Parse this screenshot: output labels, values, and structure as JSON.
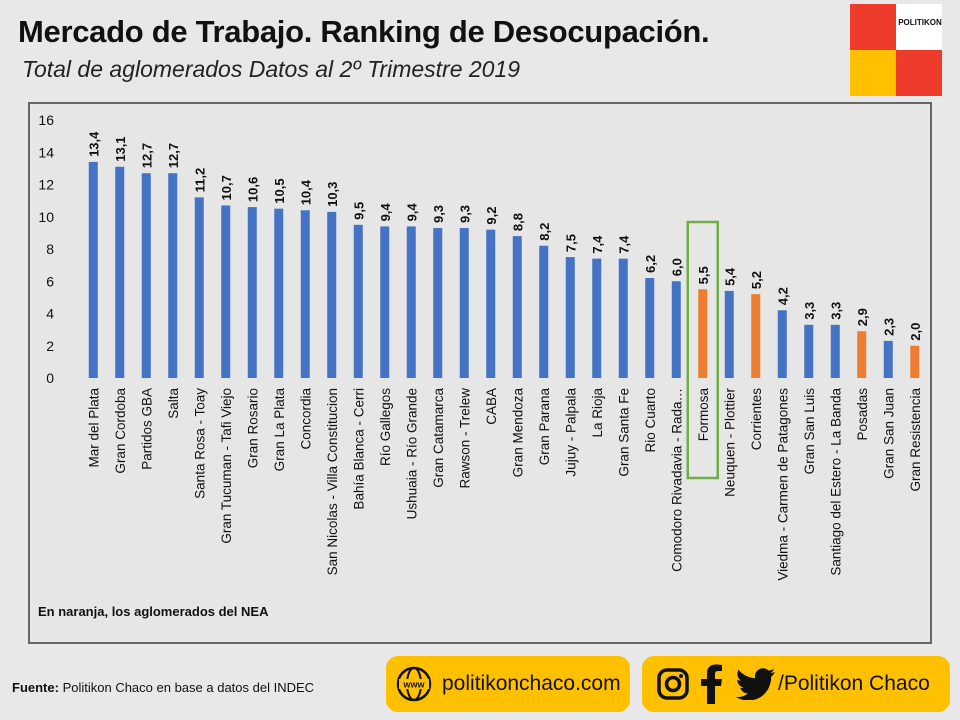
{
  "header": {
    "title": "Mercado de Trabajo. Ranking de Desocupación.",
    "subtitle": "Total de aglomerados Datos al 2º Trimestre 2019"
  },
  "logo": {
    "text": "POLITIKON",
    "colors": [
      "#ef3b2c",
      "#ffffff",
      "#ffc000",
      "#ef3b2c"
    ]
  },
  "note": "En naranja, los aglomerados del NEA",
  "source": {
    "label": "Fuente:",
    "text": " Politikon Chaco en base a datos del INDEC"
  },
  "footer": {
    "website": "politikonchaco.com",
    "social": "/Politikon Chaco",
    "icons": [
      "www-icon",
      "instagram-icon",
      "facebook-icon",
      "twitter-icon"
    ]
  },
  "colors": {
    "blue": "#4472c4",
    "orange": "#ed7d31",
    "highlight_border": "#70ad47",
    "accent": "#ffc000"
  },
  "chart_data": {
    "type": "bar",
    "ylim": [
      0,
      16
    ],
    "yticks": [
      0,
      2,
      4,
      6,
      8,
      10,
      12,
      14,
      16
    ],
    "grid": false,
    "categories": [
      "Mar del Plata",
      "Gran Cordoba",
      "Partidos GBA",
      "Salta",
      "Santa Rosa - Toay",
      "Gran Tucuman - Tafi Viejo",
      "Gran Rosario",
      "Gran La Plata",
      "Concordia",
      "San Nicolas - Villa Constitucion",
      "Bahía Blanca - Cerri",
      "Río Gallegos",
      "Ushuaia - Río Grande",
      "Gran Catamarca",
      "Rawson - Trelew",
      "CABA",
      "Gran Mendoza",
      "Gran Parana",
      "Jujuy - Palpala",
      "La Rioja",
      "Gran Santa Fe",
      "Rio Cuarto",
      "Comodoro Rivadavia - Rada…",
      "Formosa",
      "Neuquen - Plottier",
      "Corrientes",
      "Viedma - Carmen de Patagones",
      "Gran San Luis",
      "Santiago del Estero - La Banda",
      "Posadas",
      "Gran San Juan",
      "Gran Resistencia"
    ],
    "values": [
      13.4,
      13.1,
      12.7,
      12.7,
      11.2,
      10.7,
      10.6,
      10.5,
      10.4,
      10.3,
      9.5,
      9.4,
      9.4,
      9.3,
      9.3,
      9.2,
      8.8,
      8.2,
      7.5,
      7.4,
      7.4,
      6.2,
      6.0,
      5.5,
      5.4,
      5.2,
      4.2,
      3.3,
      3.3,
      2.9,
      2.3,
      2.0
    ],
    "labels": [
      "13,4",
      "13,1",
      "12,7",
      "12,7",
      "11,2",
      "10,7",
      "10,6",
      "10,5",
      "10,4",
      "10,3",
      "9,5",
      "9,4",
      "9,4",
      "9,3",
      "9,3",
      "9,2",
      "8,8",
      "8,2",
      "7,5",
      "7,4",
      "7,4",
      "6,2",
      "6,0",
      "5,5",
      "5,4",
      "5,2",
      "4,2",
      "3,3",
      "3,3",
      "2,9",
      "2,3",
      "2,0"
    ],
    "nea": [
      "Formosa",
      "Corrientes",
      "Posadas",
      "Gran Resistencia"
    ],
    "highlighted": "Formosa"
  }
}
